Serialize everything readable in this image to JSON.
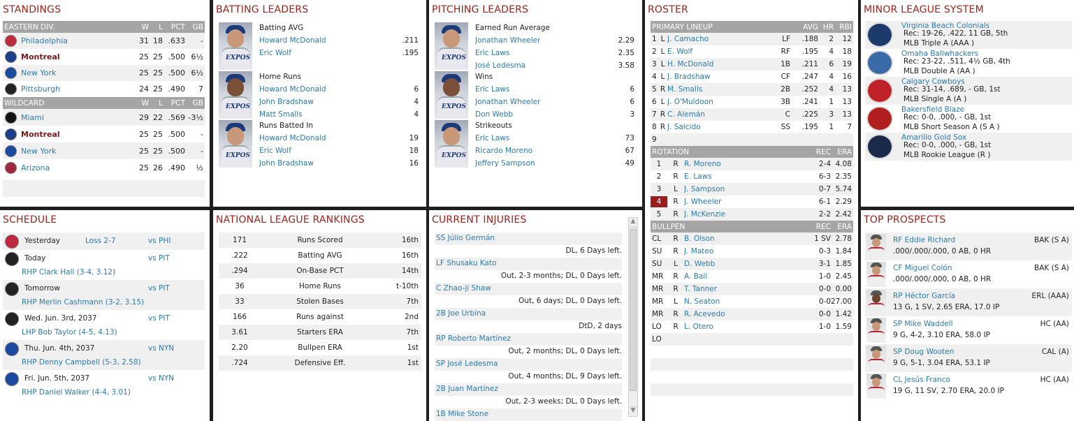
{
  "standings": {
    "title": "STANDINGS",
    "div_header": {
      "name": "EASTERN DIV.",
      "w": "W",
      "l": "L",
      "pct": "PCT",
      "gb": "GB"
    },
    "div_rows": [
      {
        "team": "Philadelphia",
        "w": "31",
        "l": "18",
        "pct": ".633",
        "gb": "-",
        "logo": "#c0283c",
        "bold": false
      },
      {
        "team": "Montreal",
        "w": "25",
        "l": "25",
        "pct": ".500",
        "gb": "6½",
        "logo": "#1c3f8c",
        "bold": true
      },
      {
        "team": "New York",
        "w": "25",
        "l": "25",
        "pct": ".500",
        "gb": "6½",
        "logo": "#1c4aa0",
        "bold": false
      },
      {
        "team": "Pittsburgh",
        "w": "24",
        "l": "25",
        "pct": ".490",
        "gb": "7",
        "logo": "#222222",
        "bold": false
      }
    ],
    "wc_header": {
      "name": "WILDCARD",
      "w": "W",
      "l": "L",
      "pct": "PCT",
      "gb": "GB"
    },
    "wc_rows": [
      {
        "team": "Miami",
        "w": "29",
        "l": "22",
        "pct": ".569",
        "gb": "-3½",
        "logo": "#111111",
        "bold": false
      },
      {
        "team": "Montreal",
        "w": "25",
        "l": "25",
        "pct": ".500",
        "gb": "-",
        "logo": "#1c3f8c",
        "bold": true
      },
      {
        "team": "New York",
        "w": "25",
        "l": "25",
        "pct": ".500",
        "gb": "-",
        "logo": "#1c4aa0",
        "bold": false
      },
      {
        "team": "Arizona",
        "w": "25",
        "l": "26",
        "pct": ".490",
        "gb": "½",
        "logo": "#a3273c",
        "bold": false
      }
    ]
  },
  "batting": {
    "title": "BATTING LEADERS",
    "groups": [
      {
        "label": "Batting AVG",
        "rows": [
          {
            "name": "Howard McDonald",
            "val": ".211"
          },
          {
            "name": "Eric Wolf",
            "val": ".195"
          }
        ]
      },
      {
        "label": "Home Runs",
        "rows": [
          {
            "name": "Howard McDonald",
            "val": "6"
          },
          {
            "name": "John Bradshaw",
            "val": "4"
          },
          {
            "name": "Matt Smalls",
            "val": "4"
          }
        ]
      },
      {
        "label": "Runs Batted In",
        "rows": [
          {
            "name": "Howard McDonald",
            "val": "19"
          },
          {
            "name": "Eric Wolf",
            "val": "18"
          },
          {
            "name": "John Bradshaw",
            "val": "16"
          }
        ]
      }
    ]
  },
  "pitching": {
    "title": "PITCHING LEADERS",
    "groups": [
      {
        "label": "Earned Run Average",
        "rows": [
          {
            "name": "Jonathan Wheeler",
            "val": "2.29"
          },
          {
            "name": "Eric Laws",
            "val": "2.35"
          },
          {
            "name": "José Ledesma",
            "val": "3.58"
          }
        ]
      },
      {
        "label": "Wins",
        "rows": [
          {
            "name": "Eric Laws",
            "val": "6"
          },
          {
            "name": "Jonathan Wheeler",
            "val": "6"
          },
          {
            "name": "Don Webb",
            "val": "3"
          }
        ]
      },
      {
        "label": "Strikeouts",
        "rows": [
          {
            "name": "Eric Laws",
            "val": "73"
          },
          {
            "name": "Ricardo Moreno",
            "val": "67"
          },
          {
            "name": "Jeffery Sampson",
            "val": "49"
          }
        ]
      }
    ]
  },
  "roster": {
    "title": "ROSTER",
    "lineup_header": {
      "name": "PRIMARY LINEUP",
      "avg": "AVG",
      "hr": "HR",
      "rbi": "RBI"
    },
    "lineup": [
      {
        "n": "1",
        "h": "L",
        "name": "J. Camacho",
        "pos": "LF",
        "avg": ".188",
        "hr": "2",
        "rbi": "12"
      },
      {
        "n": "2",
        "h": "L",
        "name": "E. Wolf",
        "pos": "RF",
        "avg": ".195",
        "hr": "4",
        "rbi": "18"
      },
      {
        "n": "3",
        "h": "L",
        "name": "H. McDonald",
        "pos": "1B",
        "avg": ".211",
        "hr": "6",
        "rbi": "19"
      },
      {
        "n": "4",
        "h": "L",
        "name": "J. Bradshaw",
        "pos": "CF",
        "avg": ".247",
        "hr": "4",
        "rbi": "16"
      },
      {
        "n": "5",
        "h": "R",
        "name": "M. Smalls",
        "pos": "2B",
        "avg": ".252",
        "hr": "4",
        "rbi": "13"
      },
      {
        "n": "6",
        "h": "L",
        "name": "J. O'Muldoon",
        "pos": "3B",
        "avg": ".241",
        "hr": "1",
        "rbi": "13"
      },
      {
        "n": "7",
        "h": "R",
        "name": "C. Alemán",
        "pos": "C",
        "avg": ".225",
        "hr": "3",
        "rbi": "13"
      },
      {
        "n": "8",
        "h": "R",
        "name": "J. Salcido",
        "pos": "SS",
        "avg": ".195",
        "hr": "1",
        "rbi": "7"
      },
      {
        "n": "9",
        "h": "",
        "name": "",
        "pos": "",
        "avg": "",
        "hr": "",
        "rbi": ""
      }
    ],
    "rotation_header": {
      "name": "ROTATION",
      "rec": "REC",
      "era": "ERA"
    },
    "rotation": [
      {
        "n": "1",
        "h": "R",
        "name": "R. Moreno",
        "rec": "2-4",
        "era": "4.08",
        "hl": false
      },
      {
        "n": "2",
        "h": "R",
        "name": "E. Laws",
        "rec": "6-3",
        "era": "2.35",
        "hl": false
      },
      {
        "n": "3",
        "h": "L",
        "name": "J. Sampson",
        "rec": "0-7",
        "era": "5.74",
        "hl": false
      },
      {
        "n": "4",
        "h": "R",
        "name": "J. Wheeler",
        "rec": "6-1",
        "era": "2.29",
        "hl": true
      },
      {
        "n": "5",
        "h": "R",
        "name": "J. McKenzie",
        "rec": "2-2",
        "era": "2.42",
        "hl": false
      }
    ],
    "bullpen_header": {
      "name": "BULLPEN",
      "rec": "REC",
      "era": "ERA"
    },
    "bullpen": [
      {
        "role": "CL",
        "h": "R",
        "name": "B. Olson",
        "rec": "1 SV",
        "era": "2.78"
      },
      {
        "role": "SU",
        "h": "R",
        "name": "J. Mateo",
        "rec": "0-3",
        "era": "1.84"
      },
      {
        "role": "SU",
        "h": "L",
        "name": "D. Webb",
        "rec": "3-1",
        "era": "1.85"
      },
      {
        "role": "MR",
        "h": "R",
        "name": "A. Ball",
        "rec": "1-0",
        "era": "2.45"
      },
      {
        "role": "MR",
        "h": "R",
        "name": "T. Tanner",
        "rec": "0-0",
        "era": "0.00"
      },
      {
        "role": "MR",
        "h": "L",
        "name": "N. Seaton",
        "rec": "0-0",
        "era": "27.00"
      },
      {
        "role": "MR",
        "h": "R",
        "name": "R. Acevedo",
        "rec": "0-0",
        "era": "1.42"
      },
      {
        "role": "LO",
        "h": "R",
        "name": "L. Otero",
        "rec": "1-0",
        "era": "1.59"
      },
      {
        "role": "LO",
        "h": "",
        "name": "",
        "rec": "",
        "era": ""
      }
    ]
  },
  "minors": {
    "title": "MINOR LEAGUE SYSTEM",
    "teams": [
      {
        "name": "Virginia Beach Colonials",
        "rec": "Rec: 19-26, .422, 11 GB, 5th",
        "level": "MLB Triple A (AAA )",
        "color": "#1c3a6c"
      },
      {
        "name": "Omaha Ballwhackers",
        "rec": "Rec: 23-22, .511, 4½ GB, 4th",
        "level": "MLB Double A (AA )",
        "color": "#3a6aa8"
      },
      {
        "name": "Calgary Cowboys",
        "rec": "Rec: 31-14, .689, - GB, 1st",
        "level": "MLB Single A (A )",
        "color": "#c0222a"
      },
      {
        "name": "Bakersfield Blaze",
        "rec": "Rec: 0-0, .000, - GB, 1st",
        "level": "MLB Short Season A (S A )",
        "color": "#b01e1e"
      },
      {
        "name": "Amarillo Gold Sox",
        "rec": "Rec: 0-0, .000, - GB, 1st",
        "level": "MLB Rookie League (R )",
        "color": "#1a2a4a"
      }
    ]
  },
  "schedule": {
    "title": "SCHEDULE",
    "items": [
      {
        "day": "Yesterday",
        "result": "Loss 2-7",
        "opp": "vs PHI",
        "pitcher": "",
        "logo": "#c0283c"
      },
      {
        "day": "Today",
        "result": "",
        "opp": "vs PIT",
        "pitcher": "RHP Clark Hall (3-4, 3.12)",
        "logo": "#222222"
      },
      {
        "day": "Tomorrow",
        "result": "",
        "opp": "vs PIT",
        "pitcher": "RHP Merlin Cashmann (3-2, 3.15)",
        "logo": "#222222"
      },
      {
        "day": "Wed. Jun. 3rd, 2037",
        "result": "",
        "opp": "vs PIT",
        "pitcher": "LHP Bob Taylor (4-5, 4.13)",
        "logo": "#222222"
      },
      {
        "day": "Thu. Jun. 4th, 2037",
        "result": "",
        "opp": "vs NYN",
        "pitcher": "RHP Denny Campbell (5-3, 2.58)",
        "logo": "#1c4aa0"
      },
      {
        "day": "Fri. Jun. 5th, 2037",
        "result": "",
        "opp": "vs NYN",
        "pitcher": "RHP Daniel Walker (4-4, 3.01)",
        "logo": "#1c4aa0"
      }
    ]
  },
  "rankings": {
    "title": "NATIONAL LEAGUE RANKINGS",
    "rows": [
      {
        "val": "171",
        "stat": "Runs Scored",
        "rank": "16th"
      },
      {
        "val": ".222",
        "stat": "Batting AVG",
        "rank": "16th"
      },
      {
        "val": ".294",
        "stat": "On-Base PCT",
        "rank": "14th"
      },
      {
        "val": "36",
        "stat": "Home Runs",
        "rank": "t-10th"
      },
      {
        "val": "33",
        "stat": "Stolen Bases",
        "rank": "7th"
      },
      {
        "val": "166",
        "stat": "Runs against",
        "rank": "2nd"
      },
      {
        "val": "3.61",
        "stat": "Starters ERA",
        "rank": "7th"
      },
      {
        "val": "2.20",
        "stat": "Bullpen ERA",
        "rank": "1st"
      },
      {
        "val": ".724",
        "stat": "Defensive Eff.",
        "rank": "1st"
      }
    ]
  },
  "injuries": {
    "title": "CURRENT INJURIES",
    "items": [
      {
        "name": "SS Júlio Germán",
        "status": "DL, 6 Days left."
      },
      {
        "name": "LF Shusaku Kato",
        "status": "Out, 2-3 months; DL, 0 Days left."
      },
      {
        "name": "C Zhao-ji Shaw",
        "status": "Out, 6 days; DL, 0 Days left."
      },
      {
        "name": "2B Joe Urbina",
        "status": "DtD, 2 days"
      },
      {
        "name": "RP Roberto Martínez",
        "status": "Out, 2 months; DL, 0 Days left."
      },
      {
        "name": "SP José Ledesma",
        "status": "Out, 4 months; DL, 9 Days left."
      },
      {
        "name": "2B Juan Martínez",
        "status": "Out, 2-3 weeks; DL, 0 Days left."
      },
      {
        "name": "1B Mike Stone",
        "status": ""
      }
    ]
  },
  "prospects": {
    "title": "TOP PROSPECTS",
    "items": [
      {
        "name": "RF Eddie Richard",
        "team": "BAK (S A)",
        "line": ".000/.000/.000, 0 AB, 0 HR",
        "dark": false
      },
      {
        "name": "CF Miguel Colón",
        "team": "BAK (S A)",
        "line": ".000/.000/.000, 0 AB, 0 HR",
        "dark": false
      },
      {
        "name": "RP Héctor García",
        "team": "ERL (AAA)",
        "line": "13 G, 1 SV, 2.65 ERA, 17.0 IP",
        "dark": true
      },
      {
        "name": "SP Mike Waddell",
        "team": "HC (AA)",
        "line": "9 G, 4-2, 3.10 ERA, 58.0 IP",
        "dark": false
      },
      {
        "name": "SP Doug Wooten",
        "team": "CAL (A)",
        "line": "9 G, 5-1, 3.04 ERA, 53.1 IP",
        "dark": false
      },
      {
        "name": "CL Jesús Franco",
        "team": "HC (AA)",
        "line": "19 G, 11 SV, 2.70 ERA, 20.0 IP",
        "dark": false
      }
    ]
  },
  "colors": {
    "accent": "#a0221b",
    "link": "#2a7ab0",
    "header_bg": "#a5a5a5",
    "highlight": "#9b1c1c"
  }
}
